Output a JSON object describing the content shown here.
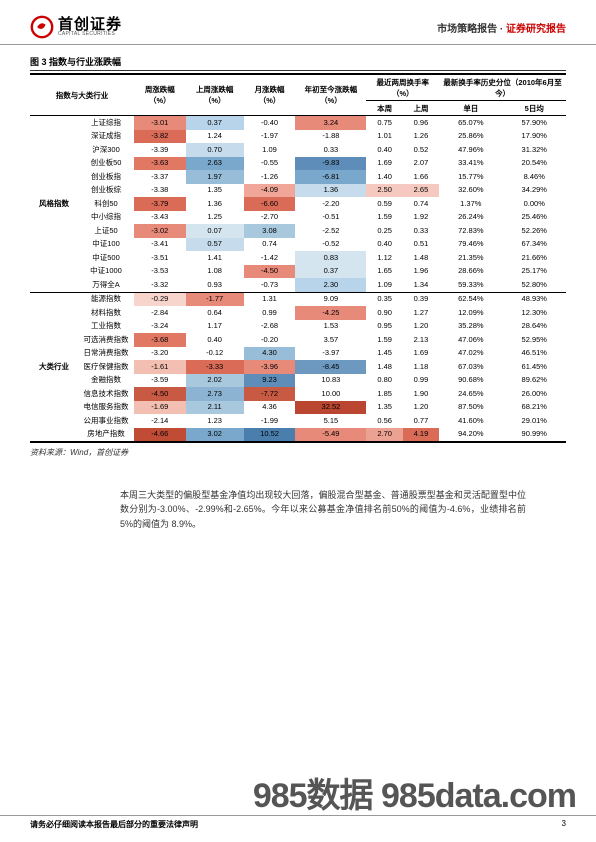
{
  "header": {
    "logo_cn": "首创证券",
    "logo_en": "CAPITAL SECURITIES",
    "right_gray": "市场策略报告",
    "right_red": "证券研究报告",
    "separator": " · "
  },
  "table_caption": "图 3 指数与行业涨跌幅",
  "columns": {
    "group": "指数与大类行业",
    "c1": "周涨跌幅（%）",
    "c2": "上周涨跌幅（%）",
    "c3": "月涨跌幅（%）",
    "c4": "年初至今涨跌幅（%）",
    "turnover_hdr": "最近两周换手率（%）",
    "hist_hdr": "最新换手率历史分位（2010年6月至今）",
    "sub_this": "本周",
    "sub_last": "上周",
    "sub_single": "单日",
    "sub_5day": "5日均"
  },
  "groups": [
    {
      "name": "风格指数",
      "rows": [
        {
          "label": "上证综指",
          "v": [
            -3.01,
            0.37,
            -0.4,
            3.24,
            0.75,
            0.96,
            "65.07%",
            "57.90%"
          ],
          "bg": [
            "#e88a7a",
            "#b8d4ea",
            "",
            "#e88a7a",
            "",
            "",
            "",
            ""
          ]
        },
        {
          "label": "深证成指",
          "v": [
            -3.82,
            1.24,
            -1.97,
            -1.88,
            1.01,
            1.26,
            "25.86%",
            "17.90%"
          ],
          "bg": [
            "#d96b57",
            "",
            "",
            "",
            "",
            "",
            "",
            ""
          ]
        },
        {
          "label": "沪深300",
          "v": [
            -3.39,
            0.7,
            1.09,
            0.33,
            0.4,
            0.52,
            "47.96%",
            "31.32%"
          ],
          "bg": [
            "",
            "#c6dcec",
            "",
            "",
            "",
            "",
            "",
            ""
          ]
        },
        {
          "label": "创业板50",
          "v": [
            -3.63,
            2.63,
            -0.55,
            -9.83,
            1.69,
            2.07,
            "33.41%",
            "20.54%"
          ],
          "bg": [
            "#e07864",
            "#7aa8cc",
            "",
            "#5d8db8",
            "",
            "",
            "",
            ""
          ]
        },
        {
          "label": "创业板指",
          "v": [
            -3.37,
            1.97,
            -1.26,
            -6.81,
            1.4,
            1.66,
            "15.77%",
            "8.46%"
          ],
          "bg": [
            "",
            "#97bdd8",
            "",
            "#7aa8cc",
            "",
            "",
            "",
            ""
          ]
        },
        {
          "label": "创业板综",
          "v": [
            -3.38,
            1.35,
            -4.09,
            1.36,
            2.5,
            2.65,
            "32.60%",
            "34.29%"
          ],
          "bg": [
            "",
            "",
            "#f0a699",
            "#c6dcec",
            "#f5c9c0",
            "#f5c9c0",
            "",
            ""
          ]
        },
        {
          "label": "科创50",
          "v": [
            -3.79,
            1.36,
            -6.6,
            -2.2,
            0.59,
            0.74,
            "1.37%",
            "0.00%"
          ],
          "bg": [
            "#d96b57",
            "",
            "#d96b57",
            "",
            "",
            "",
            "",
            ""
          ]
        },
        {
          "label": "中小综指",
          "v": [
            -3.43,
            1.25,
            -2.7,
            -0.51,
            1.59,
            1.92,
            "26.24%",
            "25.46%"
          ],
          "bg": [
            "",
            "",
            "",
            "",
            "",
            "",
            "",
            ""
          ]
        },
        {
          "label": "上证50",
          "v": [
            -3.02,
            0.07,
            3.08,
            -2.52,
            0.25,
            0.33,
            "72.83%",
            "52.26%"
          ],
          "bg": [
            "#e88a7a",
            "#d4e5f0",
            "#a8c8de",
            "",
            "",
            "",
            "",
            ""
          ]
        },
        {
          "label": "中证100",
          "v": [
            -3.41,
            0.57,
            0.74,
            -0.52,
            0.4,
            0.51,
            "79.46%",
            "67.34%"
          ],
          "bg": [
            "",
            "#c6dcec",
            "",
            "",
            "",
            "",
            "",
            ""
          ]
        },
        {
          "label": "中证500",
          "v": [
            -3.51,
            1.41,
            -1.42,
            0.83,
            1.12,
            1.48,
            "21.35%",
            "21.66%"
          ],
          "bg": [
            "",
            "",
            "",
            "#d4e5f0",
            "",
            "",
            "",
            ""
          ]
        },
        {
          "label": "中证1000",
          "v": [
            -3.53,
            1.08,
            -4.5,
            0.37,
            1.65,
            1.96,
            "28.66%",
            "25.17%"
          ],
          "bg": [
            "",
            "",
            "#e88a7a",
            "#d4e5f0",
            "",
            "",
            "",
            ""
          ]
        },
        {
          "label": "万得全A",
          "v": [
            -3.32,
            0.93,
            -0.73,
            2.3,
            1.09,
            1.34,
            "59.33%",
            "52.80%"
          ],
          "bg": [
            "",
            "",
            "",
            "#b8d4ea",
            "",
            "",
            "",
            ""
          ]
        }
      ]
    },
    {
      "name": "大类行业",
      "rows": [
        {
          "label": "能源指数",
          "v": [
            -0.29,
            -1.77,
            1.31,
            9.09,
            0.35,
            0.39,
            "62.54%",
            "48.93%"
          ],
          "bg": [
            "#f7d4cc",
            "#e88a7a",
            "",
            "",
            "",
            "",
            "",
            ""
          ]
        },
        {
          "label": "材料指数",
          "v": [
            -2.84,
            0.64,
            0.99,
            -4.25,
            0.9,
            1.27,
            "12.09%",
            "12.30%"
          ],
          "bg": [
            "",
            "",
            "",
            "#e88a7a",
            "",
            "",
            "",
            ""
          ]
        },
        {
          "label": "工业指数",
          "v": [
            -3.24,
            1.17,
            -2.68,
            1.53,
            0.95,
            1.2,
            "35.28%",
            "28.64%"
          ],
          "bg": [
            "",
            "",
            "",
            "",
            "",
            "",
            "",
            ""
          ]
        },
        {
          "label": "可选消费指数",
          "v": [
            -3.68,
            0.4,
            -0.2,
            3.57,
            1.59,
            2.13,
            "47.06%",
            "52.95%"
          ],
          "bg": [
            "#e07864",
            "",
            "",
            "",
            "",
            "",
            "",
            ""
          ]
        },
        {
          "label": "日常消费指数",
          "v": [
            -3.2,
            -0.12,
            4.3,
            -3.97,
            1.45,
            1.69,
            "47.02%",
            "46.51%"
          ],
          "bg": [
            "",
            "",
            "#97bdd8",
            "",
            "",
            "",
            "",
            ""
          ]
        },
        {
          "label": "医疗保健指数",
          "v": [
            -1.61,
            -3.33,
            -3.96,
            -8.45,
            1.48,
            1.18,
            "67.03%",
            "61.45%"
          ],
          "bg": [
            "#f3bfb3",
            "#d96b57",
            "#e88a7a",
            "#6d99c0",
            "",
            "",
            "",
            ""
          ]
        },
        {
          "label": "金融指数",
          "v": [
            -3.59,
            2.02,
            9.23,
            10.83,
            0.8,
            0.99,
            "90.68%",
            "89.62%"
          ],
          "bg": [
            "",
            "#a8c8de",
            "#5d8db8",
            "",
            "",
            "",
            "",
            ""
          ]
        },
        {
          "label": "信息技术指数",
          "v": [
            -4.5,
            2.73,
            -7.72,
            10.0,
            1.85,
            1.9,
            "24.65%",
            "26.00%"
          ],
          "bg": [
            "#c85a44",
            "#8cb4d2",
            "#c85a44",
            "",
            "",
            "",
            "",
            ""
          ]
        },
        {
          "label": "电信服务指数",
          "v": [
            -1.69,
            2.11,
            4.36,
            32.52,
            1.35,
            1.2,
            "87.50%",
            "68.21%"
          ],
          "bg": [
            "#f3bfb3",
            "#a8c8de",
            "",
            "#ba4530",
            "",
            "",
            "",
            ""
          ]
        },
        {
          "label": "公用事业指数",
          "v": [
            -2.14,
            1.23,
            -1.99,
            5.15,
            0.56,
            0.77,
            "41.60%",
            "29.01%"
          ],
          "bg": [
            "",
            "",
            "",
            "",
            "",
            "",
            "",
            ""
          ]
        },
        {
          "label": "房地产指数",
          "v": [
            -4.66,
            3.02,
            10.52,
            -5.49,
            2.7,
            4.19,
            "94.20%",
            "90.99%"
          ],
          "bg": [
            "#c04c36",
            "#7aa8cc",
            "#4a7fad",
            "#e88a7a",
            "#eca292",
            "#d96b57",
            "",
            ""
          ]
        }
      ]
    }
  ],
  "source": "资料来源：Wind，首创证券",
  "body_text": "本周三大类型的偏股型基金净值均出现较大回落，偏股混合型基金、普通股票型基金和灵活配置型中位数分别为-3.00%、-2.99%和-2.65%。今年以来公募基金净值排名前50%的阈值为-4.6%，业绩排名前 5%的阈值为 8.9%。",
  "footer": {
    "left": "请务必仔细阅读本报告最后部分的重要法律声明",
    "page": "3"
  },
  "watermark": "985数据 985data.com"
}
